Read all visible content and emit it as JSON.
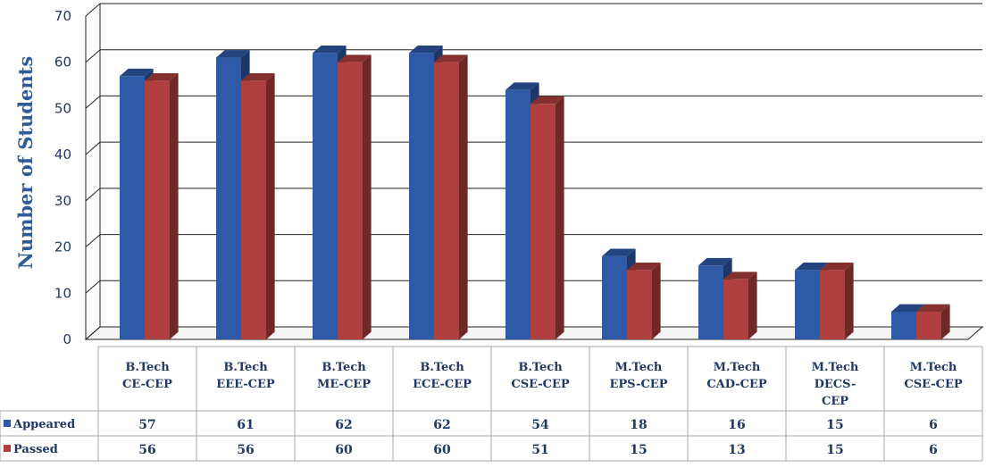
{
  "chart_data": {
    "type": "bar",
    "ylabel": "Number of Students",
    "ylim": [
      0,
      70
    ],
    "yticks": [
      0,
      10,
      20,
      30,
      40,
      50,
      60,
      70
    ],
    "grid": true,
    "legend_position": "data-table-left",
    "categories": [
      [
        "B.Tech",
        "CE-CEP"
      ],
      [
        "B.Tech",
        "EEE-CEP"
      ],
      [
        "B.Tech",
        "ME-CEP"
      ],
      [
        "B.Tech",
        "ECE-CEP"
      ],
      [
        "B.Tech",
        "CSE-CEP"
      ],
      [
        "M.Tech",
        "EPS-CEP"
      ],
      [
        "M.Tech",
        "CAD-CEP"
      ],
      [
        "M.Tech",
        "DECS-",
        "CEP"
      ],
      [
        "M.Tech",
        "CSE-CEP"
      ]
    ],
    "series": [
      {
        "name": "Appeared",
        "color": "#2f5aa8",
        "values": [
          57,
          61,
          62,
          62,
          54,
          18,
          16,
          15,
          6
        ]
      },
      {
        "name": "Passed",
        "color": "#b0403f",
        "values": [
          56,
          56,
          60,
          60,
          51,
          15,
          13,
          15,
          6
        ]
      }
    ]
  }
}
